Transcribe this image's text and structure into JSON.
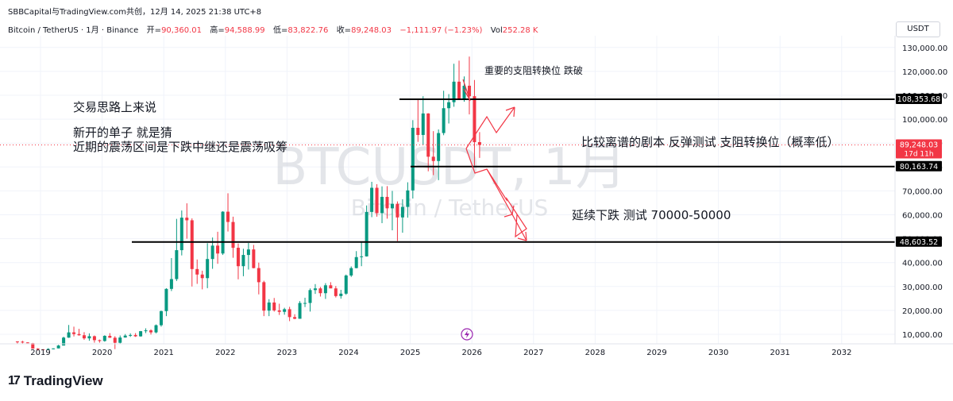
{
  "header": {
    "source": "SBBCapital与TradingView.com共创，12月 14, 2025 21:38 UTC+8",
    "symbol": "Bitcoin / TetherUS · 1月 · Binance",
    "open_label": "开=",
    "open": "90,360.01",
    "high_label": "高=",
    "high": "94,588.99",
    "low_label": "低=",
    "low": "83,822.76",
    "close_label": "收=",
    "close": "89,248.03",
    "change": "−1,111.97 (−1.23%)",
    "vol_label": "Vol",
    "vol": "252.28 K"
  },
  "currency_button": "USDT",
  "watermark": {
    "title": "BTCUSDT, 1月",
    "subtitle": "Bitcoin / TetherUS"
  },
  "annotations": {
    "note1": "交易思路上来说",
    "note2": "新开的单子    就是猜",
    "note3": "近期的震荡区间是下跌中继还是震荡吸筹",
    "note4": "重要的支阻转换位 跌破",
    "note5": "比较离谱的剧本  反弹测试  支阻转换位（概率低）",
    "note6": "延续下跌  测试 70000-50000"
  },
  "price_tags": {
    "level1": "108,353.68",
    "current": "89,248.03",
    "countdown": "17d 11h",
    "level2": "80,163.74",
    "level3": "48,603.52"
  },
  "footer": {
    "brand": "TradingView",
    "mark": "17"
  },
  "colors": {
    "up": "#089981",
    "down": "#f23645",
    "arrow": "#f23645",
    "line": "#000000",
    "grid": "#f0f3fa"
  },
  "chart_data": {
    "type": "candlestick",
    "interval": "1M",
    "x_ticks": [
      "2019",
      "2020",
      "2021",
      "2022",
      "2023",
      "2024",
      "2025",
      "2026",
      "2027",
      "2028",
      "2029",
      "2030",
      "2031",
      "2032"
    ],
    "y_ticks": [
      10000,
      20000,
      30000,
      40000,
      50000,
      60000,
      70000,
      80000,
      90000,
      100000,
      110000,
      120000,
      130000
    ],
    "y_tick_labels": [
      "10,000.00",
      "20,000.00",
      "30,000.00",
      "40,000.00",
      "50,000.00",
      "60,000.00",
      "70,000.00",
      "80,000.00",
      "90,000.00",
      "100,000.00",
      "110,000.00",
      "120,000.00",
      "130,000.00"
    ],
    "ylim": [
      0,
      135000
    ],
    "start": "2018-08",
    "candles": [
      [
        7000,
        7100,
        6000,
        6900
      ],
      [
        6900,
        7300,
        6200,
        6600
      ],
      [
        6600,
        6700,
        6300,
        6300
      ],
      [
        6300,
        6400,
        4100,
        4000
      ],
      [
        4000,
        4200,
        3200,
        3700
      ],
      [
        3700,
        3800,
        3400,
        3450
      ],
      [
        3450,
        4200,
        3400,
        3850
      ],
      [
        3850,
        4100,
        3700,
        4100
      ],
      [
        4100,
        5600,
        4100,
        5300
      ],
      [
        5300,
        9000,
        5300,
        8600
      ],
      [
        8600,
        13900,
        8500,
        10800
      ],
      [
        10800,
        13200,
        9100,
        10100
      ],
      [
        10100,
        12300,
        9400,
        9600
      ],
      [
        9600,
        10900,
        7700,
        8300
      ],
      [
        8300,
        10400,
        7300,
        9200
      ],
      [
        9200,
        9500,
        6500,
        7550
      ],
      [
        7550,
        7800,
        6500,
        7200
      ],
      [
        7200,
        9600,
        6900,
        9350
      ],
      [
        9350,
        10500,
        8500,
        8550
      ],
      [
        8550,
        9200,
        3800,
        6450
      ],
      [
        6450,
        9500,
        6200,
        8650
      ],
      [
        8650,
        10100,
        8600,
        9450
      ],
      [
        9450,
        10400,
        8900,
        9700
      ],
      [
        9700,
        10500,
        8900,
        9150
      ],
      [
        9150,
        11400,
        9000,
        11300
      ],
      [
        11300,
        12500,
        10500,
        11650
      ],
      [
        11650,
        12100,
        9900,
        10800
      ],
      [
        10800,
        14100,
        10400,
        13800
      ],
      [
        13800,
        19900,
        13200,
        19700
      ],
      [
        19700,
        29300,
        17600,
        29000
      ],
      [
        29000,
        41900,
        28100,
        33100
      ],
      [
        33100,
        58300,
        32300,
        45200
      ],
      [
        45200,
        61800,
        43000,
        58800
      ],
      [
        58800,
        64800,
        50000,
        57700
      ],
      [
        57700,
        58500,
        30000,
        37300
      ],
      [
        37300,
        41300,
        31100,
        35000
      ],
      [
        35000,
        36600,
        28800,
        33500
      ],
      [
        33500,
        48100,
        29300,
        41500
      ],
      [
        41500,
        50500,
        37400,
        47100
      ],
      [
        47100,
        52900,
        39500,
        43800
      ],
      [
        43800,
        61500,
        43200,
        61300
      ],
      [
        61300,
        69000,
        53000,
        57000
      ],
      [
        57000,
        59200,
        42000,
        46200
      ],
      [
        46200,
        48000,
        33000,
        38500
      ],
      [
        38500,
        45800,
        34300,
        43200
      ],
      [
        43200,
        48200,
        37100,
        45500
      ],
      [
        45500,
        47400,
        37600,
        37700
      ],
      [
        37700,
        40000,
        26700,
        31800
      ],
      [
        31800,
        32400,
        17600,
        19900
      ],
      [
        19900,
        24700,
        17600,
        23300
      ],
      [
        23300,
        25200,
        19500,
        20000
      ],
      [
        20000,
        22800,
        18100,
        19400
      ],
      [
        19400,
        21100,
        18200,
        20500
      ],
      [
        20500,
        21500,
        15500,
        17200
      ],
      [
        17200,
        18400,
        16300,
        16500
      ],
      [
        16500,
        23900,
        16500,
        23100
      ],
      [
        23100,
        25300,
        21400,
        23100
      ],
      [
        23100,
        29200,
        19500,
        28500
      ],
      [
        28500,
        31000,
        26900,
        29200
      ],
      [
        29200,
        29800,
        25800,
        27200
      ],
      [
        27200,
        31400,
        24800,
        30500
      ],
      [
        30500,
        31800,
        29500,
        29200
      ],
      [
        29200,
        30200,
        25400,
        26000
      ],
      [
        26000,
        28600,
        24900,
        27000
      ],
      [
        27000,
        35000,
        26500,
        34600
      ],
      [
        34600,
        38400,
        34000,
        37700
      ],
      [
        37700,
        44800,
        37600,
        42300
      ],
      [
        42300,
        48900,
        38500,
        42600
      ],
      [
        42600,
        63900,
        42500,
        61200
      ],
      [
        61200,
        73800,
        59000,
        71300
      ],
      [
        71300,
        72800,
        59200,
        60700
      ],
      [
        60700,
        71900,
        56500,
        67500
      ],
      [
        67500,
        72000,
        58400,
        62700
      ],
      [
        62700,
        70000,
        53500,
        64600
      ],
      [
        64600,
        65600,
        49000,
        58900
      ],
      [
        58900,
        66500,
        52500,
        63300
      ],
      [
        63300,
        73600,
        58800,
        70200
      ],
      [
        70200,
        99600,
        66800,
        96400
      ],
      [
        96400,
        108400,
        90500,
        93400
      ],
      [
        93400,
        109600,
        89200,
        102400
      ],
      [
        102400,
        102500,
        78200,
        84300
      ],
      [
        84300,
        95000,
        76600,
        82500
      ],
      [
        82500,
        95700,
        74500,
        94200
      ],
      [
        94200,
        111900,
        93300,
        104600
      ],
      [
        104600,
        110500,
        98200,
        107100
      ],
      [
        107100,
        123200,
        105200,
        115700
      ],
      [
        115700,
        124500,
        108000,
        108200
      ],
      [
        108200,
        117900,
        107300,
        114000
      ],
      [
        114000,
        126200,
        102000,
        109600
      ],
      [
        109600,
        116400,
        80600,
        90400
      ],
      [
        90400,
        94600,
        83800,
        89248
      ]
    ],
    "lines": [
      108353.68,
      80163.74,
      48603.52
    ],
    "current_price": 89248.03,
    "future_paths": [
      {
        "from": [
          "2025-11",
          87000
        ],
        "to": [
          "2026-12",
          108000
        ]
      },
      {
        "from": [
          "2025-12",
          80000
        ],
        "to": [
          "2026-12",
          48600
        ]
      }
    ]
  }
}
